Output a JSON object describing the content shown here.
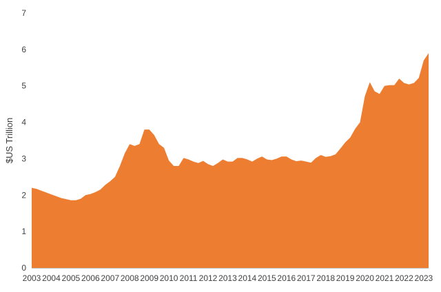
{
  "chart_data": {
    "type": "area",
    "title": "",
    "xlabel": "",
    "ylabel": "$US Trillion",
    "xlim": [
      2003,
      2023.25
    ],
    "ylim": [
      0,
      7
    ],
    "grid": false,
    "legend": "none",
    "color": "#ED7D31",
    "y_ticks": [
      0,
      1,
      2,
      3,
      4,
      5,
      6,
      7
    ],
    "x_ticks": [
      "2003",
      "2004",
      "2005",
      "2006",
      "2007",
      "2008",
      "2009",
      "2010",
      "2011",
      "2012",
      "2013",
      "2014",
      "2015",
      "2016",
      "2017",
      "2018",
      "2019",
      "2020",
      "2021",
      "2022",
      "2023"
    ],
    "series": [
      {
        "x": [
          2003.0,
          2003.25,
          2003.5,
          2003.75,
          2004.0,
          2004.25,
          2004.5,
          2004.75,
          2005.0,
          2005.25,
          2005.5,
          2005.75,
          2006.0,
          2006.25,
          2006.5,
          2006.75,
          2007.0,
          2007.25,
          2007.5,
          2007.75,
          2008.0,
          2008.25,
          2008.5,
          2008.75,
          2009.0,
          2009.25,
          2009.5,
          2009.75,
          2010.0,
          2010.25,
          2010.5,
          2010.75,
          2011.0,
          2011.25,
          2011.5,
          2011.75,
          2012.0,
          2012.25,
          2012.5,
          2012.75,
          2013.0,
          2013.25,
          2013.5,
          2013.75,
          2014.0,
          2014.25,
          2014.5,
          2014.75,
          2015.0,
          2015.25,
          2015.5,
          2015.75,
          2016.0,
          2016.25,
          2016.5,
          2016.75,
          2017.0,
          2017.25,
          2017.5,
          2017.75,
          2018.0,
          2018.25,
          2018.5,
          2018.75,
          2019.0,
          2019.25,
          2019.5,
          2019.75,
          2020.0,
          2020.25,
          2020.5,
          2020.75,
          2021.0,
          2021.25,
          2021.5,
          2021.75,
          2022.0,
          2022.25,
          2022.5,
          2022.75,
          2023.0,
          2023.25
        ],
        "values": [
          2.2,
          2.17,
          2.12,
          2.07,
          2.02,
          1.97,
          1.92,
          1.89,
          1.86,
          1.86,
          1.9,
          2.0,
          2.03,
          2.08,
          2.15,
          2.28,
          2.38,
          2.5,
          2.8,
          3.15,
          3.4,
          3.35,
          3.4,
          3.8,
          3.8,
          3.65,
          3.4,
          3.3,
          2.95,
          2.8,
          2.8,
          3.02,
          2.98,
          2.92,
          2.88,
          2.94,
          2.85,
          2.8,
          2.88,
          2.98,
          2.92,
          2.92,
          3.02,
          3.02,
          2.98,
          2.92,
          3.0,
          3.06,
          2.98,
          2.96,
          3.0,
          3.06,
          3.06,
          2.98,
          2.93,
          2.95,
          2.92,
          2.89,
          3.02,
          3.1,
          3.05,
          3.07,
          3.12,
          3.28,
          3.45,
          3.58,
          3.82,
          4.0,
          4.72,
          5.1,
          4.85,
          4.78,
          5.0,
          5.02,
          5.02,
          5.2,
          5.08,
          5.04,
          5.08,
          5.22,
          5.7,
          5.9
        ]
      }
    ]
  }
}
